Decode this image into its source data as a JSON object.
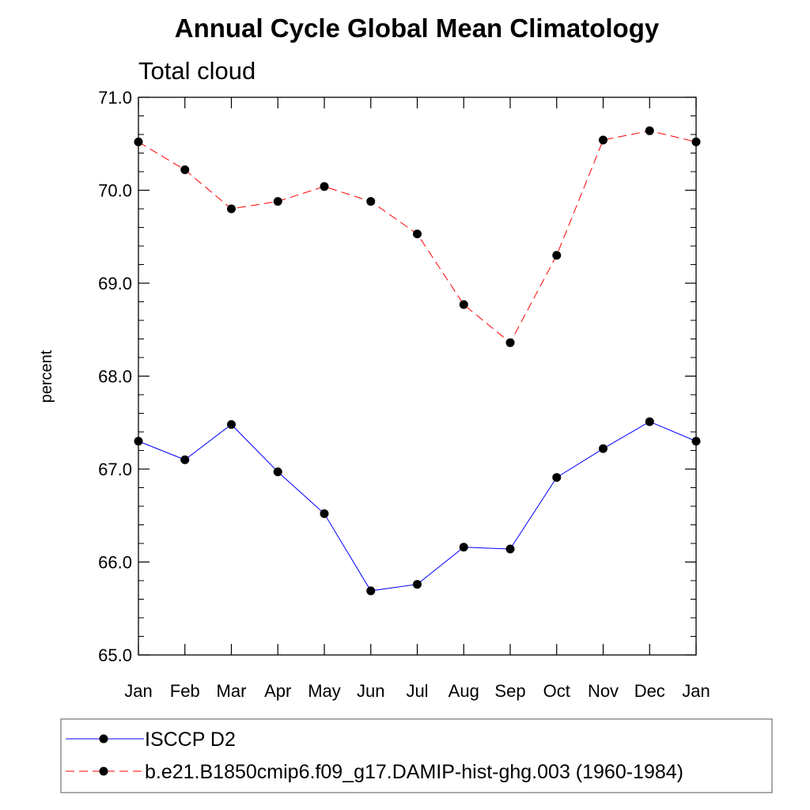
{
  "chart_data": {
    "type": "line",
    "title": "Annual Cycle Global Mean Climatology",
    "subtitle": "Total cloud",
    "xlabel": "",
    "ylabel": "percent",
    "categories": [
      "Jan",
      "Feb",
      "Mar",
      "Apr",
      "May",
      "Jun",
      "Jul",
      "Aug",
      "Sep",
      "Oct",
      "Nov",
      "Dec",
      "Jan"
    ],
    "ylim": [
      65.0,
      71.0
    ],
    "yticks": [
      "65.0",
      "66.0",
      "67.0",
      "68.0",
      "69.0",
      "70.0",
      "71.0"
    ],
    "y_minor_step": 0.2,
    "grid": false,
    "legend_position": "bottom",
    "series": [
      {
        "name": "ISCCP D2",
        "color": "#0000ff",
        "line_style": "solid",
        "marker": "filled-circle",
        "values": [
          67.3,
          67.1,
          67.48,
          66.97,
          66.52,
          65.69,
          65.76,
          66.16,
          66.14,
          66.91,
          67.22,
          67.51,
          67.3
        ]
      },
      {
        "name": "b.e21.B1850cmip6.f09_g17.DAMIP-hist-ghg.003 (1960-1984)",
        "color": "#ff0000",
        "line_style": "dashed",
        "marker": "filled-circle",
        "values": [
          70.52,
          70.22,
          69.8,
          69.88,
          70.04,
          69.88,
          69.53,
          68.77,
          68.36,
          69.3,
          70.54,
          70.64,
          70.52
        ]
      }
    ]
  }
}
